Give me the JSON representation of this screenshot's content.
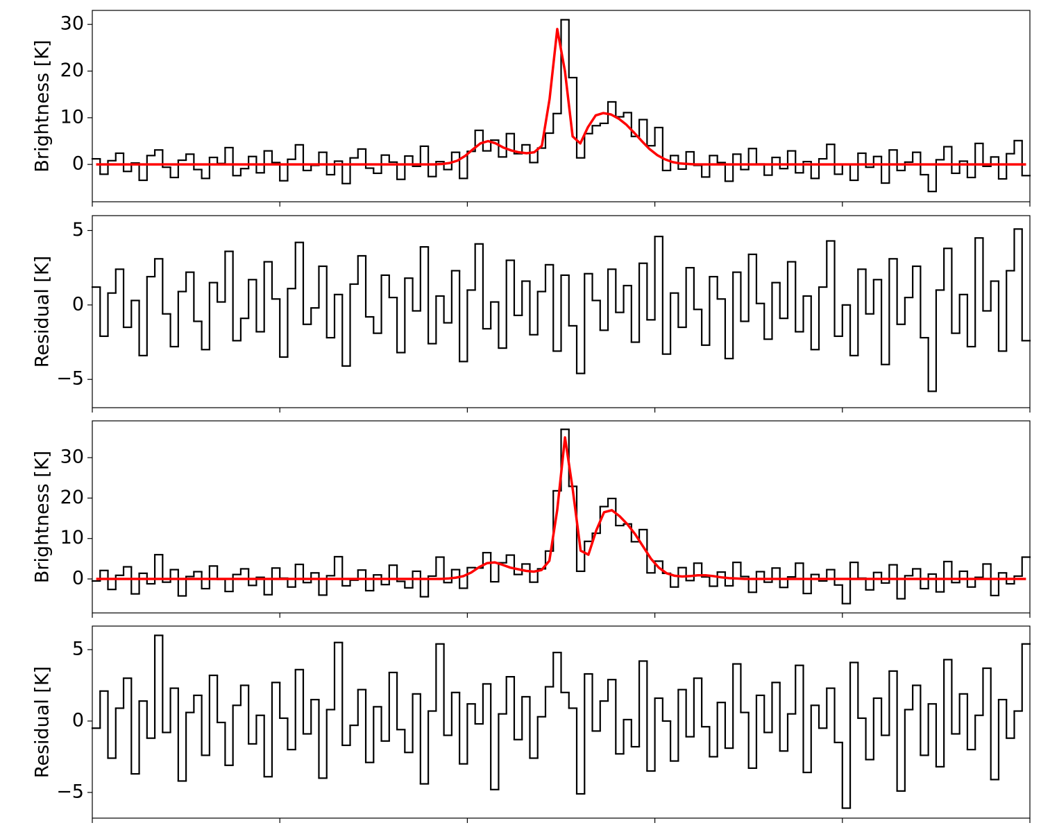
{
  "chart_data": [
    {
      "type": "line",
      "ylabel": "Brightness [K]",
      "ylim": [
        -8,
        33
      ],
      "yticks": [
        0,
        10,
        20,
        30
      ],
      "series": [
        {
          "color": "#000000",
          "step": true,
          "values": [
            1.2,
            -2.1,
            0.8,
            2.4,
            -1.5,
            0.3,
            -3.4,
            1.9,
            3.1,
            -0.6,
            -2.8,
            0.9,
            2.2,
            -1.1,
            -3.0,
            1.5,
            0.2,
            3.6,
            -2.4,
            -0.9,
            1.7,
            -1.8,
            2.9,
            0.4,
            -3.5,
            1.1,
            4.2,
            -1.3,
            -0.2,
            2.6,
            -2.2,
            0.7,
            -4.1,
            1.4,
            3.3,
            -0.8,
            -1.9,
            2.0,
            0.5,
            -3.2,
            1.8,
            -0.4,
            3.9,
            -2.6,
            0.6,
            -1.1,
            2.6,
            -3.0,
            2.8,
            7.3,
            2.9,
            5.2,
            1.6,
            6.6,
            2.3,
            4.2,
            0.4,
            3.5,
            6.7,
            10.9,
            31.0,
            18.6,
            1.4,
            6.6,
            8.3,
            8.8,
            13.4,
            10.2,
            11.1,
            6.0,
            9.6,
            4.0,
            7.9,
            -1.3,
            1.9,
            -1.0,
            2.7,
            -0.2,
            -2.7,
            1.9,
            0.4,
            -3.6,
            2.2,
            -1.1,
            3.4,
            0.1,
            -2.3,
            1.5,
            -0.9,
            2.9,
            -1.8,
            0.6,
            -3.0,
            1.2,
            4.3,
            -2.1,
            0.0,
            -3.4,
            2.4,
            -0.6,
            1.7,
            -4.0,
            3.1,
            -1.3,
            0.5,
            2.6,
            -2.2,
            -5.8,
            1.0,
            3.8,
            -1.9,
            0.7,
            -2.8,
            4.5,
            -0.4,
            1.6,
            -3.1,
            2.3,
            5.1,
            -2.4
          ]
        },
        {
          "color": "#ff0000",
          "step": false,
          "values": [
            0,
            0,
            0,
            0,
            0,
            0,
            0,
            0,
            0,
            0,
            0,
            0,
            0,
            0,
            0,
            0,
            0,
            0,
            0,
            0,
            0,
            0,
            0,
            0,
            0,
            0,
            0,
            0,
            0,
            0,
            0,
            0,
            0,
            0,
            0,
            0,
            0,
            0,
            0,
            0,
            0,
            0,
            0,
            0,
            0,
            0.1,
            0.3,
            0.8,
            1.8,
            3.2,
            4.5,
            5.0,
            4.5,
            3.6,
            3.0,
            2.6,
            2.4,
            2.6,
            4.0,
            14,
            29,
            20,
            6,
            4.5,
            8,
            10.5,
            11,
            10.7,
            9.8,
            8.5,
            6.8,
            5,
            3.3,
            2,
            1.1,
            0.5,
            0.2,
            0.1,
            0,
            0,
            0,
            0,
            0,
            0,
            0,
            0,
            0,
            0,
            0,
            0,
            0,
            0,
            0,
            0,
            0,
            0,
            0,
            0,
            0,
            0,
            0,
            0,
            0,
            0,
            0,
            0,
            0,
            0,
            0,
            0,
            0,
            0,
            0,
            0,
            0,
            0,
            0,
            0,
            0,
            0,
            0,
            0
          ]
        }
      ]
    },
    {
      "type": "line",
      "ylabel": "Residual [K]",
      "ylim": [
        -6.9,
        6.0
      ],
      "yticks": [
        {
          "value": -5,
          "label": "−5"
        },
        0,
        5
      ],
      "series": [
        {
          "color": "#000000",
          "step": true,
          "values": [
            1.2,
            -2.1,
            0.8,
            2.4,
            -1.5,
            0.3,
            -3.4,
            1.9,
            3.1,
            -0.6,
            -2.8,
            0.9,
            2.2,
            -1.1,
            -3.0,
            1.5,
            0.2,
            3.6,
            -2.4,
            -0.9,
            1.7,
            -1.8,
            2.9,
            0.4,
            -3.5,
            1.1,
            4.2,
            -1.3,
            -0.2,
            2.6,
            -2.2,
            0.7,
            -4.1,
            1.4,
            3.3,
            -0.8,
            -1.9,
            2.0,
            0.5,
            -3.2,
            1.8,
            -0.4,
            3.9,
            -2.6,
            0.6,
            -1.2,
            2.3,
            -3.8,
            1.0,
            4.1,
            -1.6,
            0.2,
            -2.9,
            3.0,
            -0.7,
            1.6,
            -2.0,
            0.9,
            2.7,
            -3.1,
            2.0,
            -1.4,
            -4.6,
            2.1,
            0.3,
            -1.7,
            2.4,
            -0.5,
            1.3,
            -2.5,
            2.8,
            -1.0,
            4.6,
            -3.3,
            0.8,
            -1.5,
            2.5,
            -0.3,
            -2.7,
            1.9,
            0.4,
            -3.6,
            2.2,
            -1.1,
            3.4,
            0.1,
            -2.3,
            1.5,
            -0.9,
            2.9,
            -1.8,
            0.6,
            -3.0,
            1.2,
            4.3,
            -2.1,
            0.0,
            -3.4,
            2.4,
            -0.6,
            1.7,
            -4.0,
            3.1,
            -1.3,
            0.5,
            2.6,
            -2.2,
            -5.8,
            1.0,
            3.8,
            -1.9,
            0.7,
            -2.8,
            4.5,
            -0.4,
            1.6,
            -3.1,
            2.3,
            5.1,
            -2.4
          ]
        }
      ]
    },
    {
      "type": "line",
      "ylabel": "Brightness [K]",
      "ylim": [
        -8.4,
        39.1
      ],
      "yticks": [
        0,
        10,
        20,
        30
      ],
      "series": [
        {
          "color": "#000000",
          "step": true,
          "values": [
            -0.5,
            2.1,
            -2.6,
            0.9,
            3.0,
            -3.7,
            1.4,
            -1.2,
            6.0,
            -0.8,
            2.3,
            -4.2,
            0.6,
            1.8,
            -2.4,
            3.2,
            -0.1,
            -3.1,
            1.1,
            2.5,
            -1.6,
            0.4,
            -3.9,
            2.7,
            0.2,
            -2.0,
            3.6,
            -0.9,
            1.5,
            -4.0,
            0.8,
            5.5,
            -1.7,
            -0.3,
            2.2,
            -2.9,
            1.0,
            -1.4,
            3.4,
            -0.6,
            -2.2,
            1.9,
            -4.4,
            0.7,
            5.4,
            -0.9,
            2.3,
            -2.3,
            2.8,
            2.7,
            6.5,
            -0.7,
            4.0,
            5.9,
            1.1,
            3.7,
            -0.8,
            2.5,
            6.9,
            21.8,
            37.0,
            22.9,
            1.9,
            9.3,
            11.3,
            17.9,
            19.9,
            13.2,
            13.6,
            9.2,
            12.2,
            1.5,
            4.4,
            1.4,
            -2.0,
            2.8,
            -0.4,
            3.9,
            0.5,
            -1.8,
            1.7,
            -1.7,
            4.1,
            0.6,
            -3.3,
            1.8,
            -0.8,
            2.7,
            -2.1,
            0.5,
            3.9,
            -3.6,
            1.1,
            -0.5,
            2.3,
            -1.5,
            -6.1,
            4.1,
            0.2,
            -2.7,
            1.6,
            -1.0,
            3.5,
            -4.9,
            0.8,
            2.5,
            -2.4,
            1.2,
            -3.2,
            4.3,
            -0.9,
            1.9,
            -2.0,
            0.4,
            3.7,
            -4.1,
            1.5,
            -1.2,
            0.7,
            5.4
          ]
        },
        {
          "color": "#ff0000",
          "step": false,
          "values": [
            0,
            0,
            0,
            0,
            0,
            0,
            0,
            0,
            0,
            0,
            0,
            0,
            0,
            0,
            0,
            0,
            0,
            0,
            0,
            0,
            0,
            0,
            0,
            0,
            0,
            0,
            0,
            0,
            0,
            0,
            0,
            0,
            0,
            0,
            0,
            0,
            0,
            0,
            0,
            0,
            0,
            0,
            0,
            0,
            0,
            0.1,
            0.3,
            0.7,
            1.6,
            2.9,
            3.9,
            4.1,
            3.5,
            2.8,
            2.4,
            2.0,
            1.8,
            2.2,
            4.5,
            17,
            35,
            22,
            7,
            6,
            12,
            16.5,
            17,
            15.5,
            13.5,
            11,
            8,
            5,
            2.8,
            1.4,
            0.8,
            0.6,
            0.7,
            0.9,
            0.9,
            0.7,
            0.4,
            0.2,
            0.1,
            0,
            0,
            0,
            0,
            0,
            0,
            0,
            0,
            0,
            0,
            0,
            0,
            0,
            0,
            0,
            0,
            0,
            0,
            0,
            0,
            0,
            0,
            0,
            0,
            0,
            0,
            0,
            0,
            0,
            0,
            0,
            0,
            0,
            0,
            0,
            0,
            0
          ]
        }
      ]
    },
    {
      "type": "line",
      "ylabel": "Residual [K]",
      "ylim": [
        -6.8,
        6.65
      ],
      "yticks": [
        {
          "value": -5,
          "label": "−5"
        },
        0,
        5
      ],
      "series": [
        {
          "color": "#000000",
          "step": true,
          "values": [
            -0.5,
            2.1,
            -2.6,
            0.9,
            3.0,
            -3.7,
            1.4,
            -1.2,
            6.0,
            -0.8,
            2.3,
            -4.2,
            0.6,
            1.8,
            -2.4,
            3.2,
            -0.1,
            -3.1,
            1.1,
            2.5,
            -1.6,
            0.4,
            -3.9,
            2.7,
            0.2,
            -2.0,
            3.6,
            -0.9,
            1.5,
            -4.0,
            0.8,
            5.5,
            -1.7,
            -0.3,
            2.2,
            -2.9,
            1.0,
            -1.4,
            3.4,
            -0.6,
            -2.2,
            1.9,
            -4.4,
            0.7,
            5.4,
            -1.0,
            2.0,
            -3.0,
            1.2,
            -0.2,
            2.6,
            -4.8,
            0.5,
            3.1,
            -1.3,
            1.7,
            -2.6,
            0.3,
            2.4,
            4.8,
            2.0,
            0.9,
            -5.1,
            3.3,
            -0.7,
            1.4,
            2.9,
            -2.3,
            0.1,
            -1.8,
            4.2,
            -3.5,
            1.6,
            0.0,
            -2.8,
            2.2,
            -1.1,
            3.0,
            -0.4,
            -2.5,
            1.3,
            -1.9,
            4.0,
            0.6,
            -3.3,
            1.8,
            -0.8,
            2.7,
            -2.1,
            0.5,
            3.9,
            -3.6,
            1.1,
            -0.5,
            2.3,
            -1.5,
            -6.1,
            4.1,
            0.2,
            -2.7,
            1.6,
            -1.0,
            3.5,
            -4.9,
            0.8,
            2.5,
            -2.4,
            1.2,
            -3.2,
            4.3,
            -0.9,
            1.9,
            -2.0,
            0.4,
            3.7,
            -4.1,
            1.5,
            -1.2,
            0.7,
            5.4
          ]
        }
      ]
    }
  ]
}
